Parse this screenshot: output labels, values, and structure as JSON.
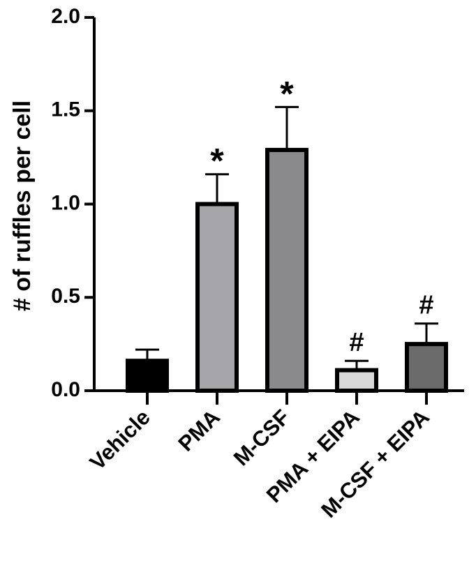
{
  "chart_data": {
    "type": "bar",
    "title": "",
    "xlabel": "",
    "ylabel": "# of ruffles per cell",
    "ylim": [
      0,
      2.0
    ],
    "yticks": [
      {
        "value": 0.0,
        "label": "0.0"
      },
      {
        "value": 0.5,
        "label": "0.5"
      },
      {
        "value": 1.0,
        "label": "1.0"
      },
      {
        "value": 1.5,
        "label": "1.5"
      },
      {
        "value": 2.0,
        "label": "2.0"
      }
    ],
    "categories": [
      "Vehicle",
      "PMA",
      "M-CSF",
      "PMA + EIPA",
      "M-CSF + EIPA"
    ],
    "values": [
      0.16,
      1.0,
      1.29,
      0.11,
      0.25
    ],
    "errors": [
      0.06,
      0.16,
      0.23,
      0.05,
      0.11
    ],
    "annotations": [
      "",
      "*",
      "*",
      "#",
      "#"
    ],
    "colors": [
      "#000000",
      "#a6a6aa",
      "#8a8a8c",
      "#d9d9d9",
      "#6b6b6b"
    ],
    "grid": false,
    "legend": "none"
  }
}
